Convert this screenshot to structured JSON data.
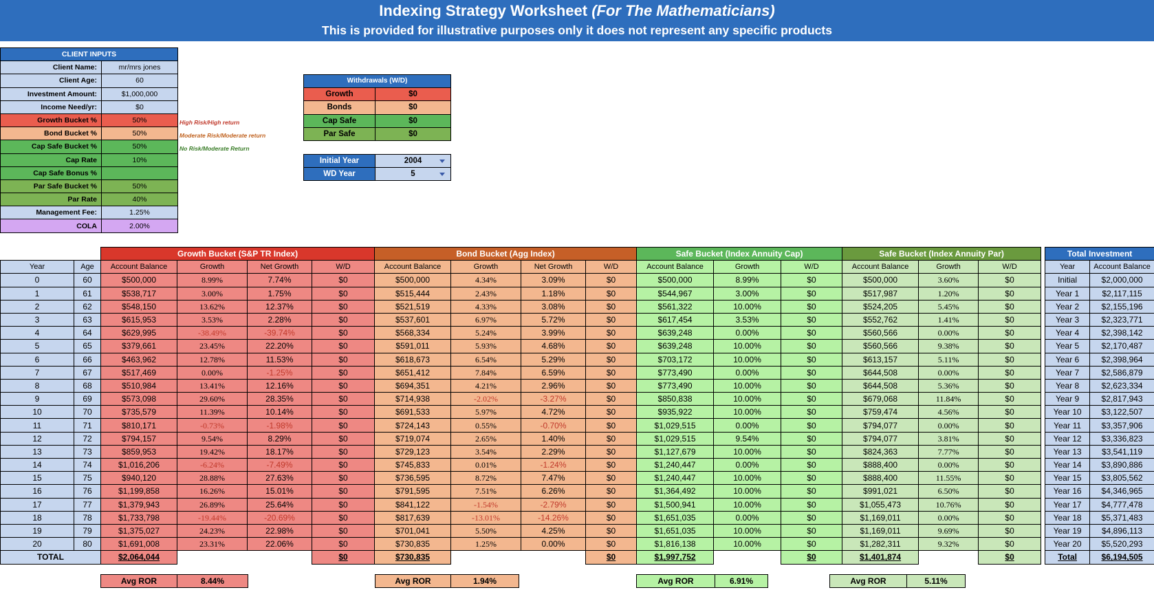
{
  "banner": {
    "title_main": "Indexing Strategy Worksheet ",
    "title_italic": "(For The Mathematicians)",
    "subtitle": "This is provided for illustrative purposes only it does not represent any specific products"
  },
  "client_inputs": {
    "header": "CLIENT INPUTS",
    "rows": [
      {
        "label": "Client Name:",
        "value": "mr/mrs jones"
      },
      {
        "label": "Client Age:",
        "value": "60"
      },
      {
        "label": "Investment Amount:",
        "value": "$1,000,000"
      },
      {
        "label": "Income Need/yr:",
        "value": "$0"
      },
      {
        "label": "Growth Bucket %",
        "value": "50%"
      },
      {
        "label": "Bond Bucket %",
        "value": "50%"
      },
      {
        "label": "Cap Safe Bucket %",
        "value": "50%"
      },
      {
        "label": "Cap Rate",
        "value": "10%"
      },
      {
        "label": "Cap Safe Bonus %",
        "value": ""
      },
      {
        "label": "Par Safe Bucket %",
        "value": "50%"
      },
      {
        "label": "Par Rate",
        "value": "40%"
      },
      {
        "label": "Management Fee:",
        "value": "1.25%"
      },
      {
        "label": "COLA",
        "value": "2.00%"
      }
    ],
    "notes": {
      "growth": "High Risk/High return",
      "bond": "Moderate Risk/Moderate return",
      "cap": "No Risk/Moderate Return"
    }
  },
  "withdrawals": {
    "header": "Withdrawals (W/D)",
    "rows": [
      {
        "label": "Growth",
        "value": "$0"
      },
      {
        "label": "Bonds",
        "value": "$0"
      },
      {
        "label": "Cap Safe",
        "value": "$0"
      },
      {
        "label": "Par Safe",
        "value": "$0"
      }
    ]
  },
  "selectors": {
    "initial_year_label": "Initial Year",
    "initial_year_value": "2004",
    "wd_year_label": "WD Year",
    "wd_year_value": "5"
  },
  "sections": {
    "growth": "Growth Bucket (S&P TR Index)",
    "bond": "Bond Bucket (Agg Index)",
    "cap": "Safe Bucket (Index Annuity Cap)",
    "par": "Safe Bucket (Index Annuity Par)",
    "total": "Total Investment"
  },
  "columns": {
    "year": "Year",
    "age": "Age",
    "account_balance": "Account Balance",
    "growth": "Growth",
    "net_growth": "Net Growth",
    "wd": "W/D"
  },
  "rows": [
    {
      "year": "0",
      "age": "60",
      "g_bal": "$500,000",
      "g_gr": "8.99%",
      "g_net": "7.74%",
      "g_wd": "$0",
      "b_bal": "$500,000",
      "b_gr": "4.34%",
      "b_net": "3.09%",
      "b_wd": "$0",
      "c_bal": "$500,000",
      "c_gr": "8.99%",
      "c_wd": "$0",
      "p_bal": "$500,000",
      "p_gr": "3.60%",
      "p_wd": "$0",
      "t_year": "Initial",
      "t_bal": "$2,000,000"
    },
    {
      "year": "1",
      "age": "61",
      "g_bal": "$538,717",
      "g_gr": "3.00%",
      "g_net": "1.75%",
      "g_wd": "$0",
      "b_bal": "$515,444",
      "b_gr": "2.43%",
      "b_net": "1.18%",
      "b_wd": "$0",
      "c_bal": "$544,967",
      "c_gr": "3.00%",
      "c_wd": "$0",
      "p_bal": "$517,987",
      "p_gr": "1.20%",
      "p_wd": "$0",
      "t_year": "Year 1",
      "t_bal": "$2,117,115"
    },
    {
      "year": "2",
      "age": "62",
      "g_bal": "$548,150",
      "g_gr": "13.62%",
      "g_net": "12.37%",
      "g_wd": "$0",
      "b_bal": "$521,519",
      "b_gr": "4.33%",
      "b_net": "3.08%",
      "b_wd": "$0",
      "c_bal": "$561,322",
      "c_gr": "10.00%",
      "c_wd": "$0",
      "p_bal": "$524,205",
      "p_gr": "5.45%",
      "p_wd": "$0",
      "t_year": "Year 2",
      "t_bal": "$2,155,196"
    },
    {
      "year": "3",
      "age": "63",
      "g_bal": "$615,953",
      "g_gr": "3.53%",
      "g_net": "2.28%",
      "g_wd": "$0",
      "b_bal": "$537,601",
      "b_gr": "6.97%",
      "b_net": "5.72%",
      "b_wd": "$0",
      "c_bal": "$617,454",
      "c_gr": "3.53%",
      "c_wd": "$0",
      "p_bal": "$552,762",
      "p_gr": "1.41%",
      "p_wd": "$0",
      "t_year": "Year 3",
      "t_bal": "$2,323,771"
    },
    {
      "year": "4",
      "age": "64",
      "g_bal": "$629,995",
      "g_gr": "-38.49%",
      "g_net": "-39.74%",
      "g_wd": "$0",
      "b_bal": "$568,334",
      "b_gr": "5.24%",
      "b_net": "3.99%",
      "b_wd": "$0",
      "c_bal": "$639,248",
      "c_gr": "0.00%",
      "c_wd": "$0",
      "p_bal": "$560,566",
      "p_gr": "0.00%",
      "p_wd": "$0",
      "t_year": "Year 4",
      "t_bal": "$2,398,142"
    },
    {
      "year": "5",
      "age": "65",
      "g_bal": "$379,661",
      "g_gr": "23.45%",
      "g_net": "22.20%",
      "g_wd": "$0",
      "b_bal": "$591,011",
      "b_gr": "5.93%",
      "b_net": "4.68%",
      "b_wd": "$0",
      "c_bal": "$639,248",
      "c_gr": "10.00%",
      "c_wd": "$0",
      "p_bal": "$560,566",
      "p_gr": "9.38%",
      "p_wd": "$0",
      "t_year": "Year 5",
      "t_bal": "$2,170,487"
    },
    {
      "year": "6",
      "age": "66",
      "g_bal": "$463,962",
      "g_gr": "12.78%",
      "g_net": "11.53%",
      "g_wd": "$0",
      "b_bal": "$618,673",
      "b_gr": "6.54%",
      "b_net": "5.29%",
      "b_wd": "$0",
      "c_bal": "$703,172",
      "c_gr": "10.00%",
      "c_wd": "$0",
      "p_bal": "$613,157",
      "p_gr": "5.11%",
      "p_wd": "$0",
      "t_year": "Year 6",
      "t_bal": "$2,398,964"
    },
    {
      "year": "7",
      "age": "67",
      "g_bal": "$517,469",
      "g_gr": "0.00%",
      "g_net": "-1.25%",
      "g_wd": "$0",
      "b_bal": "$651,412",
      "b_gr": "7.84%",
      "b_net": "6.59%",
      "b_wd": "$0",
      "c_bal": "$773,490",
      "c_gr": "0.00%",
      "c_wd": "$0",
      "p_bal": "$644,508",
      "p_gr": "0.00%",
      "p_wd": "$0",
      "t_year": "Year 7",
      "t_bal": "$2,586,879"
    },
    {
      "year": "8",
      "age": "68",
      "g_bal": "$510,984",
      "g_gr": "13.41%",
      "g_net": "12.16%",
      "g_wd": "$0",
      "b_bal": "$694,351",
      "b_gr": "4.21%",
      "b_net": "2.96%",
      "b_wd": "$0",
      "c_bal": "$773,490",
      "c_gr": "10.00%",
      "c_wd": "$0",
      "p_bal": "$644,508",
      "p_gr": "5.36%",
      "p_wd": "$0",
      "t_year": "Year 8",
      "t_bal": "$2,623,334"
    },
    {
      "year": "9",
      "age": "69",
      "g_bal": "$573,098",
      "g_gr": "29.60%",
      "g_net": "28.35%",
      "g_wd": "$0",
      "b_bal": "$714,938",
      "b_gr": "-2.02%",
      "b_net": "-3.27%",
      "b_wd": "$0",
      "c_bal": "$850,838",
      "c_gr": "10.00%",
      "c_wd": "$0",
      "p_bal": "$679,068",
      "p_gr": "11.84%",
      "p_wd": "$0",
      "t_year": "Year 9",
      "t_bal": "$2,817,943"
    },
    {
      "year": "10",
      "age": "70",
      "g_bal": "$735,579",
      "g_gr": "11.39%",
      "g_net": "10.14%",
      "g_wd": "$0",
      "b_bal": "$691,533",
      "b_gr": "5.97%",
      "b_net": "4.72%",
      "b_wd": "$0",
      "c_bal": "$935,922",
      "c_gr": "10.00%",
      "c_wd": "$0",
      "p_bal": "$759,474",
      "p_gr": "4.56%",
      "p_wd": "$0",
      "t_year": "Year 10",
      "t_bal": "$3,122,507"
    },
    {
      "year": "11",
      "age": "71",
      "g_bal": "$810,171",
      "g_gr": "-0.73%",
      "g_net": "-1.98%",
      "g_wd": "$0",
      "b_bal": "$724,143",
      "b_gr": "0.55%",
      "b_net": "-0.70%",
      "b_wd": "$0",
      "c_bal": "$1,029,515",
      "c_gr": "0.00%",
      "c_wd": "$0",
      "p_bal": "$794,077",
      "p_gr": "0.00%",
      "p_wd": "$0",
      "t_year": "Year 11",
      "t_bal": "$3,357,906"
    },
    {
      "year": "12",
      "age": "72",
      "g_bal": "$794,157",
      "g_gr": "9.54%",
      "g_net": "8.29%",
      "g_wd": "$0",
      "b_bal": "$719,074",
      "b_gr": "2.65%",
      "b_net": "1.40%",
      "b_wd": "$0",
      "c_bal": "$1,029,515",
      "c_gr": "9.54%",
      "c_wd": "$0",
      "p_bal": "$794,077",
      "p_gr": "3.81%",
      "p_wd": "$0",
      "t_year": "Year 12",
      "t_bal": "$3,336,823"
    },
    {
      "year": "13",
      "age": "73",
      "g_bal": "$859,953",
      "g_gr": "19.42%",
      "g_net": "18.17%",
      "g_wd": "$0",
      "b_bal": "$729,123",
      "b_gr": "3.54%",
      "b_net": "2.29%",
      "b_wd": "$0",
      "c_bal": "$1,127,679",
      "c_gr": "10.00%",
      "c_wd": "$0",
      "p_bal": "$824,363",
      "p_gr": "7.77%",
      "p_wd": "$0",
      "t_year": "Year 13",
      "t_bal": "$3,541,119"
    },
    {
      "year": "14",
      "age": "74",
      "g_bal": "$1,016,206",
      "g_gr": "-6.24%",
      "g_net": "-7.49%",
      "g_wd": "$0",
      "b_bal": "$745,833",
      "b_gr": "0.01%",
      "b_net": "-1.24%",
      "b_wd": "$0",
      "c_bal": "$1,240,447",
      "c_gr": "0.00%",
      "c_wd": "$0",
      "p_bal": "$888,400",
      "p_gr": "0.00%",
      "p_wd": "$0",
      "t_year": "Year 14",
      "t_bal": "$3,890,886"
    },
    {
      "year": "15",
      "age": "75",
      "g_bal": "$940,120",
      "g_gr": "28.88%",
      "g_net": "27.63%",
      "g_wd": "$0",
      "b_bal": "$736,595",
      "b_gr": "8.72%",
      "b_net": "7.47%",
      "b_wd": "$0",
      "c_bal": "$1,240,447",
      "c_gr": "10.00%",
      "c_wd": "$0",
      "p_bal": "$888,400",
      "p_gr": "11.55%",
      "p_wd": "$0",
      "t_year": "Year 15",
      "t_bal": "$3,805,562"
    },
    {
      "year": "16",
      "age": "76",
      "g_bal": "$1,199,858",
      "g_gr": "16.26%",
      "g_net": "15.01%",
      "g_wd": "$0",
      "b_bal": "$791,595",
      "b_gr": "7.51%",
      "b_net": "6.26%",
      "b_wd": "$0",
      "c_bal": "$1,364,492",
      "c_gr": "10.00%",
      "c_wd": "$0",
      "p_bal": "$991,021",
      "p_gr": "6.50%",
      "p_wd": "$0",
      "t_year": "Year 16",
      "t_bal": "$4,346,965"
    },
    {
      "year": "17",
      "age": "77",
      "g_bal": "$1,379,943",
      "g_gr": "26.89%",
      "g_net": "25.64%",
      "g_wd": "$0",
      "b_bal": "$841,122",
      "b_gr": "-1.54%",
      "b_net": "-2.79%",
      "b_wd": "$0",
      "c_bal": "$1,500,941",
      "c_gr": "10.00%",
      "c_wd": "$0",
      "p_bal": "$1,055,473",
      "p_gr": "10.76%",
      "p_wd": "$0",
      "t_year": "Year 17",
      "t_bal": "$4,777,478"
    },
    {
      "year": "18",
      "age": "78",
      "g_bal": "$1,733,798",
      "g_gr": "-19.44%",
      "g_net": "-20.69%",
      "g_wd": "$0",
      "b_bal": "$817,639",
      "b_gr": "-13.01%",
      "b_net": "-14.26%",
      "b_wd": "$0",
      "c_bal": "$1,651,035",
      "c_gr": "0.00%",
      "c_wd": "$0",
      "p_bal": "$1,169,011",
      "p_gr": "0.00%",
      "p_wd": "$0",
      "t_year": "Year 18",
      "t_bal": "$5,371,483"
    },
    {
      "year": "19",
      "age": "79",
      "g_bal": "$1,375,027",
      "g_gr": "24.23%",
      "g_net": "22.98%",
      "g_wd": "$0",
      "b_bal": "$701,041",
      "b_gr": "5.50%",
      "b_net": "4.25%",
      "b_wd": "$0",
      "c_bal": "$1,651,035",
      "c_gr": "10.00%",
      "c_wd": "$0",
      "p_bal": "$1,169,011",
      "p_gr": "9.69%",
      "p_wd": "$0",
      "t_year": "Year 19",
      "t_bal": "$4,896,113"
    },
    {
      "year": "20",
      "age": "80",
      "g_bal": "$1,691,008",
      "g_gr": "23.31%",
      "g_net": "22.06%",
      "g_wd": "$0",
      "b_bal": "$730,835",
      "b_gr": "1.25%",
      "b_net": "0.00%",
      "b_wd": "$0",
      "c_bal": "$1,816,138",
      "c_gr": "10.00%",
      "c_wd": "$0",
      "p_bal": "$1,282,311",
      "p_gr": "9.32%",
      "p_wd": "$0",
      "t_year": "Year 20",
      "t_bal": "$5,520,293"
    }
  ],
  "totals": {
    "label": "TOTAL",
    "g_bal": "$2,064,044",
    "g_wd": "$0",
    "b_bal": "$730,835",
    "b_wd": "$0",
    "c_bal": "$1,997,752",
    "c_wd": "$0",
    "p_bal": "$1,401,874",
    "p_wd": "$0",
    "t_label": "Total",
    "t_bal": "$6,194,505"
  },
  "ror": {
    "label": "Avg ROR",
    "growth": "8.44%",
    "bond": "1.94%",
    "cap": "6.91%",
    "par": "5.11%"
  },
  "colors": {
    "banner": "#2e6ebd",
    "growth": "#ea5d4e",
    "growth_light": "#ee8883",
    "bond": "#f3b78f",
    "cap": "#5cb75a",
    "cap_light": "#b6f2a4",
    "par": "#7db354",
    "par_light": "#c9e7b9",
    "lightblue": "#c6d6ee",
    "purple": "#d4a7f2"
  }
}
